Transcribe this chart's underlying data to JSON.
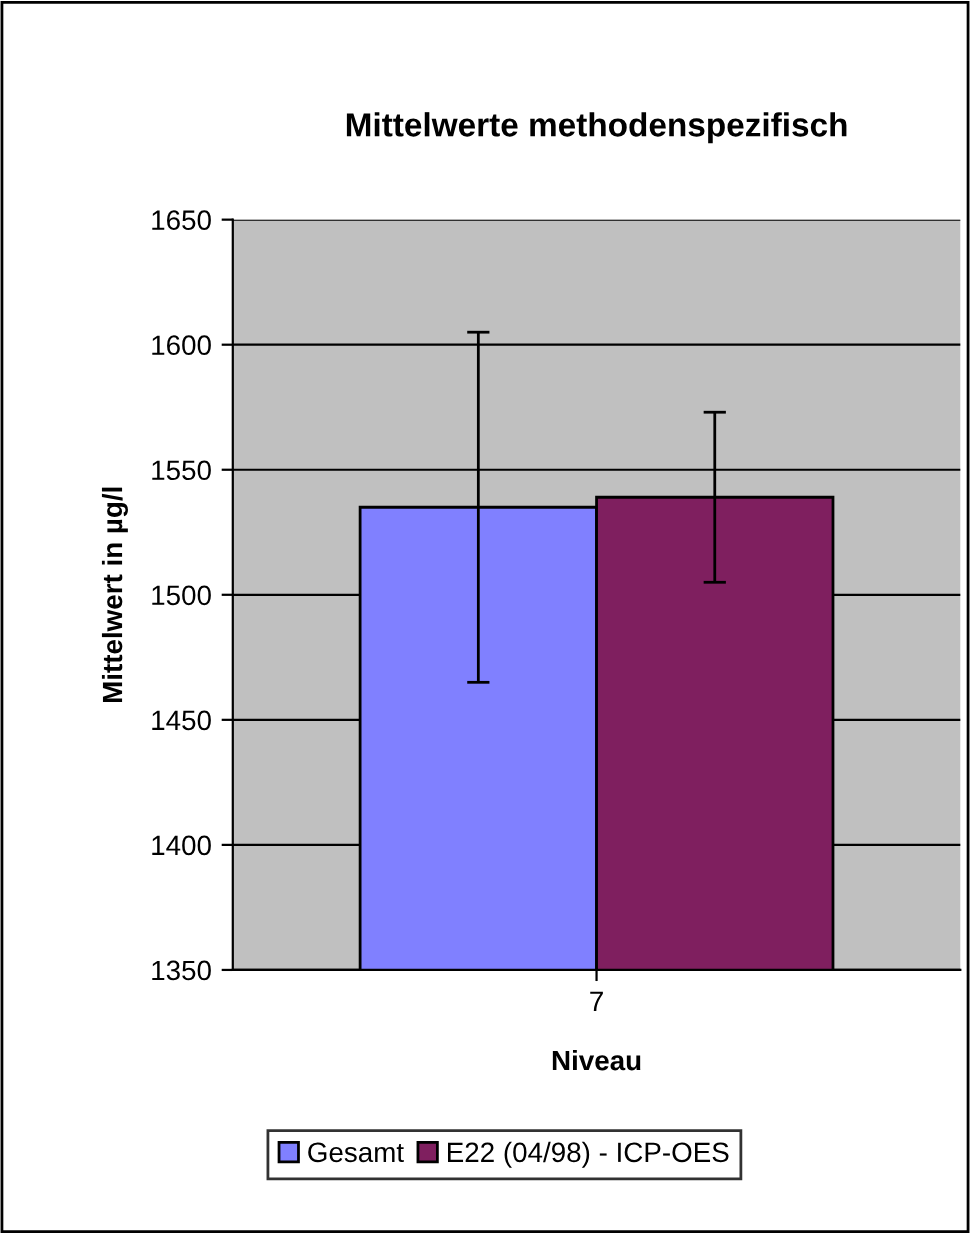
{
  "chart_data": {
    "type": "bar",
    "title": "Mittelwerte methodenspezifisch",
    "xlabel": "Niveau",
    "ylabel": "Mittelwert in µg/l",
    "categories": [
      "7"
    ],
    "series": [
      {
        "name": "Gesamt",
        "color": "#8080ff",
        "values": [
          1535
        ],
        "errors": [
          70
        ]
      },
      {
        "name": "E22 (04/98) - ICP-OES",
        "color": "#7f1f5f",
        "values": [
          1539
        ],
        "errors": [
          34
        ]
      }
    ],
    "ylim": [
      1350,
      1650
    ],
    "yticks": [
      1350,
      1400,
      1450,
      1500,
      1550,
      1600,
      1650
    ],
    "grid": "y",
    "legend": "bottom"
  }
}
